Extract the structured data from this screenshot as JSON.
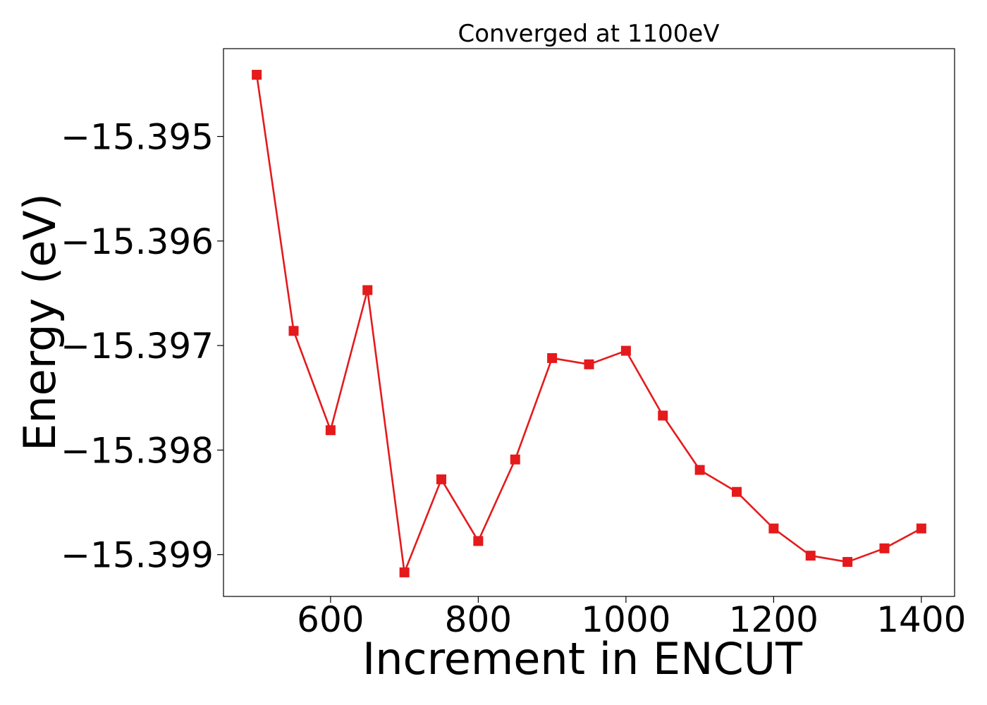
{
  "chart_data": {
    "type": "line",
    "title": "Converged at 1100eV",
    "xlabel": "Increment in ENCUT",
    "ylabel": "Energy (eV)",
    "xlim": [
      455,
      1445
    ],
    "ylim": [
      -15.3994,
      -15.39416
    ],
    "x_ticks": [
      600,
      800,
      1000,
      1200,
      1400
    ],
    "x_tick_labels": [
      "600",
      "800",
      "1000",
      "1200",
      "1400"
    ],
    "y_ticks": [
      -15.395,
      -15.396,
      -15.397,
      -15.398,
      -15.399
    ],
    "y_tick_labels": [
      "−15.395",
      "−15.396",
      "−15.397",
      "−15.398",
      "−15.399"
    ],
    "grid": false,
    "series": [
      {
        "color": "#e41a1c",
        "marker": "square",
        "x": [
          500,
          550,
          600,
          650,
          700,
          750,
          800,
          850,
          900,
          950,
          1000,
          1050,
          1100,
          1150,
          1200,
          1250,
          1300,
          1350,
          1400
        ],
        "y": [
          -15.39441,
          -15.39686,
          -15.39781,
          -15.39647,
          -15.39917,
          -15.39828,
          -15.39887,
          -15.39809,
          -15.39712,
          -15.39718,
          -15.39705,
          -15.39767,
          -15.39819,
          -15.3984,
          -15.39875,
          -15.39901,
          -15.39907,
          -15.39894,
          -15.39875
        ]
      }
    ]
  }
}
